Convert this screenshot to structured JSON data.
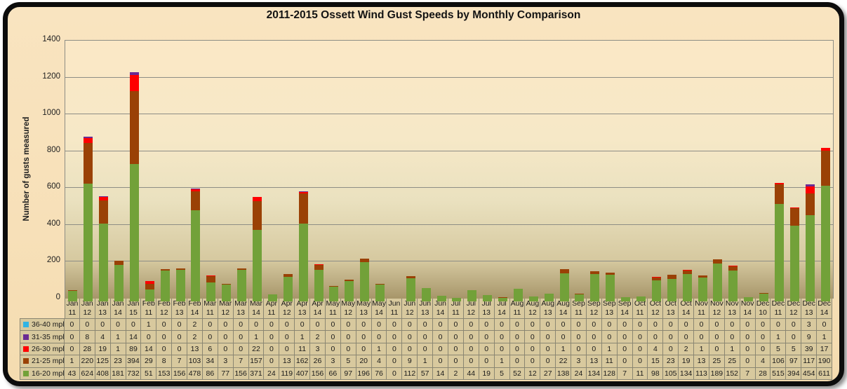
{
  "chart_data": {
    "type": "bar",
    "stacked": true,
    "title": "2011-2015 Ossett Wind Gust Speeds by Monthly Comparison",
    "ylabel": "Number of gusts measured",
    "xlabel": "",
    "ylim": [
      0,
      1400
    ],
    "ytick_step": 200,
    "grid": "horizontal",
    "legend_position": "table-left-column",
    "categories": [
      "Jan 11",
      "Jan 12",
      "Jan 13",
      "Jan 14",
      "Jan 15",
      "Feb 11",
      "Feb 12",
      "Feb 13",
      "Feb 14",
      "Mar 11",
      "Mar 12",
      "Mar 13",
      "Mar 14",
      "Apr 11",
      "Apr 12",
      "Apr 13",
      "Apr 14",
      "May 11",
      "May 12",
      "May 13",
      "May 14",
      "Jun 11",
      "Jun 12",
      "Jun 13",
      "Jun 14",
      "Jul 11",
      "Jul 12",
      "Jul 13",
      "Jul 14",
      "Aug 11",
      "Aug 12",
      "Aug 13",
      "Aug 14",
      "Sep 11",
      "Sep 12",
      "Sep 13",
      "Sep 14",
      "Oct 11",
      "Oct 12",
      "Oct 13",
      "Oct 14",
      "Nov 11",
      "Nov 12",
      "Nov 13",
      "Nov 14",
      "Dec 10",
      "Dec 11",
      "Dec 12",
      "Dec 13",
      "Dec 14"
    ],
    "series": [
      {
        "name": "36-40 mph",
        "color": "#31b4e4",
        "values": [
          0,
          0,
          0,
          0,
          0,
          1,
          0,
          0,
          2,
          0,
          0,
          0,
          0,
          0,
          0,
          0,
          0,
          0,
          0,
          0,
          0,
          0,
          0,
          0,
          0,
          0,
          0,
          0,
          0,
          0,
          0,
          0,
          0,
          0,
          0,
          0,
          0,
          0,
          0,
          0,
          0,
          0,
          0,
          0,
          0,
          0,
          0,
          0,
          3,
          0
        ]
      },
      {
        "name": "31-35 mph",
        "color": "#6a2b93",
        "values": [
          0,
          8,
          4,
          1,
          14,
          0,
          0,
          0,
          2,
          0,
          0,
          0,
          1,
          0,
          0,
          1,
          2,
          0,
          0,
          0,
          0,
          0,
          0,
          0,
          0,
          0,
          0,
          0,
          0,
          0,
          0,
          0,
          0,
          0,
          0,
          0,
          0,
          0,
          0,
          0,
          0,
          0,
          0,
          0,
          0,
          0,
          1,
          0,
          9,
          1
        ]
      },
      {
        "name": "26-30 mph",
        "color": "#fe0000",
        "values": [
          0,
          28,
          19,
          1,
          89,
          14,
          0,
          0,
          13,
          6,
          0,
          0,
          22,
          0,
          0,
          11,
          3,
          0,
          0,
          0,
          1,
          0,
          0,
          0,
          0,
          0,
          0,
          0,
          0,
          0,
          0,
          0,
          1,
          0,
          0,
          1,
          0,
          0,
          4,
          0,
          2,
          1,
          0,
          1,
          0,
          0,
          5,
          5,
          39,
          17
        ]
      },
      {
        "name": "21-25 mph",
        "color": "#9a4106",
        "values": [
          1,
          220,
          125,
          23,
          394,
          29,
          8,
          7,
          103,
          34,
          3,
          7,
          157,
          0,
          13,
          162,
          26,
          3,
          5,
          20,
          4,
          0,
          9,
          1,
          0,
          0,
          0,
          0,
          1,
          0,
          0,
          0,
          22,
          3,
          13,
          11,
          0,
          0,
          15,
          23,
          19,
          13,
          25,
          25,
          0,
          4,
          106,
          97,
          117,
          190
        ]
      },
      {
        "name": "16-20 mph",
        "color": "#72a139",
        "values": [
          43,
          624,
          408,
          181,
          732,
          51,
          153,
          156,
          478,
          86,
          77,
          156,
          371,
          24,
          119,
          407,
          156,
          66,
          97,
          196,
          76,
          0,
          112,
          57,
          14,
          2,
          44,
          19,
          5,
          52,
          12,
          27,
          138,
          24,
          134,
          128,
          7,
          11,
          98,
          105,
          134,
          113,
          189,
          152,
          7,
          28,
          515,
          394,
          454,
          611
        ]
      }
    ]
  }
}
